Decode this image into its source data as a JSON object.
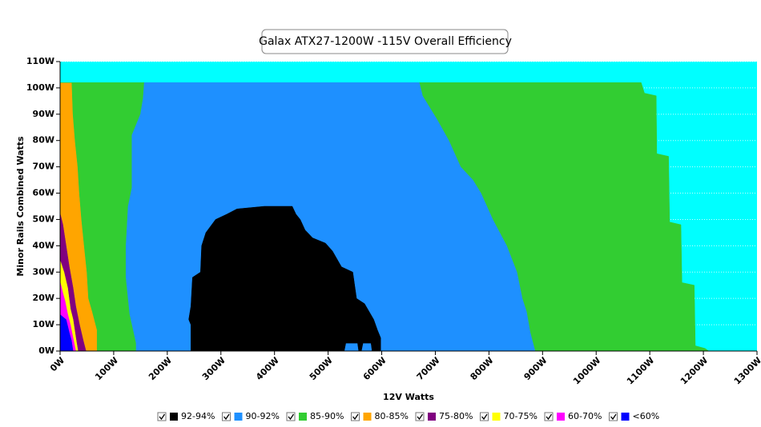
{
  "chart_data": {
    "type": "area",
    "title": "Galax ATX27-1200W -115V Overall Efficiency",
    "x_label": "12V Watts",
    "y_label": "Minor Rails Combined Watts",
    "background": "#00ffff",
    "grid": true,
    "xlim": [
      0,
      1300
    ],
    "ylim": [
      0,
      110
    ],
    "xticks": [
      {
        "value": 0,
        "label": "0W"
      },
      {
        "value": 100,
        "label": "100W"
      },
      {
        "value": 200,
        "label": "200W"
      },
      {
        "value": 300,
        "label": "300W"
      },
      {
        "value": 400,
        "label": "400W"
      },
      {
        "value": 500,
        "label": "500W"
      },
      {
        "value": 600,
        "label": "600W"
      },
      {
        "value": 700,
        "label": "700W"
      },
      {
        "value": 800,
        "label": "800W"
      },
      {
        "value": 900,
        "label": "900W"
      },
      {
        "value": 1000,
        "label": "1000W"
      },
      {
        "value": 1100,
        "label": "1100W"
      },
      {
        "value": 1200,
        "label": "1200W"
      },
      {
        "value": 1300,
        "label": "1300W"
      }
    ],
    "yticks": [
      {
        "value": 0,
        "label": "0W"
      },
      {
        "value": 10,
        "label": "10W"
      },
      {
        "value": 20,
        "label": "20W"
      },
      {
        "value": 30,
        "label": "30W"
      },
      {
        "value": 40,
        "label": "40W"
      },
      {
        "value": 50,
        "label": "50W"
      },
      {
        "value": 60,
        "label": "60W"
      },
      {
        "value": 70,
        "label": "70W"
      },
      {
        "value": 80,
        "label": "80W"
      },
      {
        "value": 90,
        "label": "90W"
      },
      {
        "value": 100,
        "label": "100W"
      },
      {
        "value": 110,
        "label": "110W"
      }
    ],
    "series": [
      {
        "name": "92-94%",
        "color": "#000000",
        "x": [
          244,
          244,
          240,
          244,
          247,
          262,
          264,
          272,
          290,
          311,
          330,
          381,
          433,
          440,
          448,
          457,
          471,
          495,
          508,
          525,
          546,
          553,
          568,
          585,
          592,
          598,
          598,
          582,
          580,
          565,
          562,
          557,
          555,
          533,
          530
        ],
        "y": [
          0,
          10,
          12,
          17,
          28,
          30,
          40,
          45,
          50,
          52,
          54,
          55,
          55,
          52,
          50,
          46,
          43,
          41,
          38,
          32,
          30,
          20,
          18,
          12,
          8,
          5,
          0,
          0,
          3,
          3,
          0,
          0,
          3,
          3,
          0
        ]
      },
      {
        "name": "90-92%",
        "color": "#1e90ff",
        "x": [
          157,
          670,
          676,
          703,
          725,
          747,
          770,
          785,
          807,
          833,
          852,
          862,
          870,
          877,
          886,
          142,
          142,
          130,
          123,
          123,
          127,
          134,
          134,
          150,
          155
        ],
        "y": [
          102,
          102,
          97,
          88,
          80,
          70,
          65,
          60,
          50,
          40,
          30,
          20,
          15,
          7,
          0,
          0,
          3,
          14,
          28,
          40,
          55,
          62,
          82,
          90,
          96
        ]
      },
      {
        "name": "85-90%",
        "color": "#32cd32",
        "x": [
          0,
          1084,
          1090,
          1112,
          1113,
          1135,
          1137,
          1158,
          1160,
          1183,
          1185,
          1203,
          1210,
          69,
          69,
          60,
          53,
          50,
          45,
          40,
          36,
          33,
          28,
          24,
          22
        ],
        "y": [
          102,
          102,
          98,
          97,
          75,
          74,
          49,
          48,
          26,
          25,
          2,
          1,
          0,
          0,
          8,
          15,
          20,
          30,
          40,
          50,
          60,
          70,
          80,
          90,
          102
        ]
      },
      {
        "name": "80-85%",
        "color": "#ffa500",
        "x": [
          0,
          22,
          24,
          28,
          33,
          36,
          40,
          45,
          50,
          53,
          60,
          69,
          69,
          49,
          44,
          37,
          30,
          25,
          18,
          12,
          6,
          0
        ],
        "y": [
          102,
          102,
          90,
          80,
          70,
          60,
          50,
          40,
          30,
          20,
          15,
          8,
          0,
          0,
          4,
          10,
          17,
          24,
          32,
          40,
          48,
          53
        ]
      },
      {
        "name": "75-80%",
        "color": "#800080",
        "x": [
          0,
          6,
          12,
          18,
          25,
          30,
          37,
          44,
          49,
          34,
          30,
          25,
          20,
          15,
          8,
          0
        ],
        "y": [
          53,
          48,
          40,
          32,
          24,
          17,
          10,
          4,
          0,
          0,
          5,
          12,
          16,
          24,
          30,
          35
        ]
      },
      {
        "name": "70-75%",
        "color": "#ffff00",
        "x": [
          0,
          8,
          15,
          20,
          25,
          30,
          34,
          30,
          25,
          20,
          15,
          10,
          6,
          0
        ],
        "y": [
          35,
          30,
          24,
          16,
          12,
          5,
          0,
          0,
          5,
          10,
          14,
          19,
          22,
          27
        ]
      },
      {
        "name": "60-70%",
        "color": "#ff00ff",
        "x": [
          0,
          6,
          10,
          15,
          20,
          25,
          30,
          25,
          22,
          18,
          12,
          0
        ],
        "y": [
          27,
          22,
          19,
          14,
          10,
          5,
          0,
          0,
          4,
          7,
          12,
          14
        ]
      },
      {
        "name": "<60%",
        "color": "#0000ff",
        "x": [
          0,
          12,
          18,
          22,
          25,
          0
        ],
        "y": [
          14,
          12,
          7,
          4,
          0,
          0
        ]
      }
    ]
  }
}
